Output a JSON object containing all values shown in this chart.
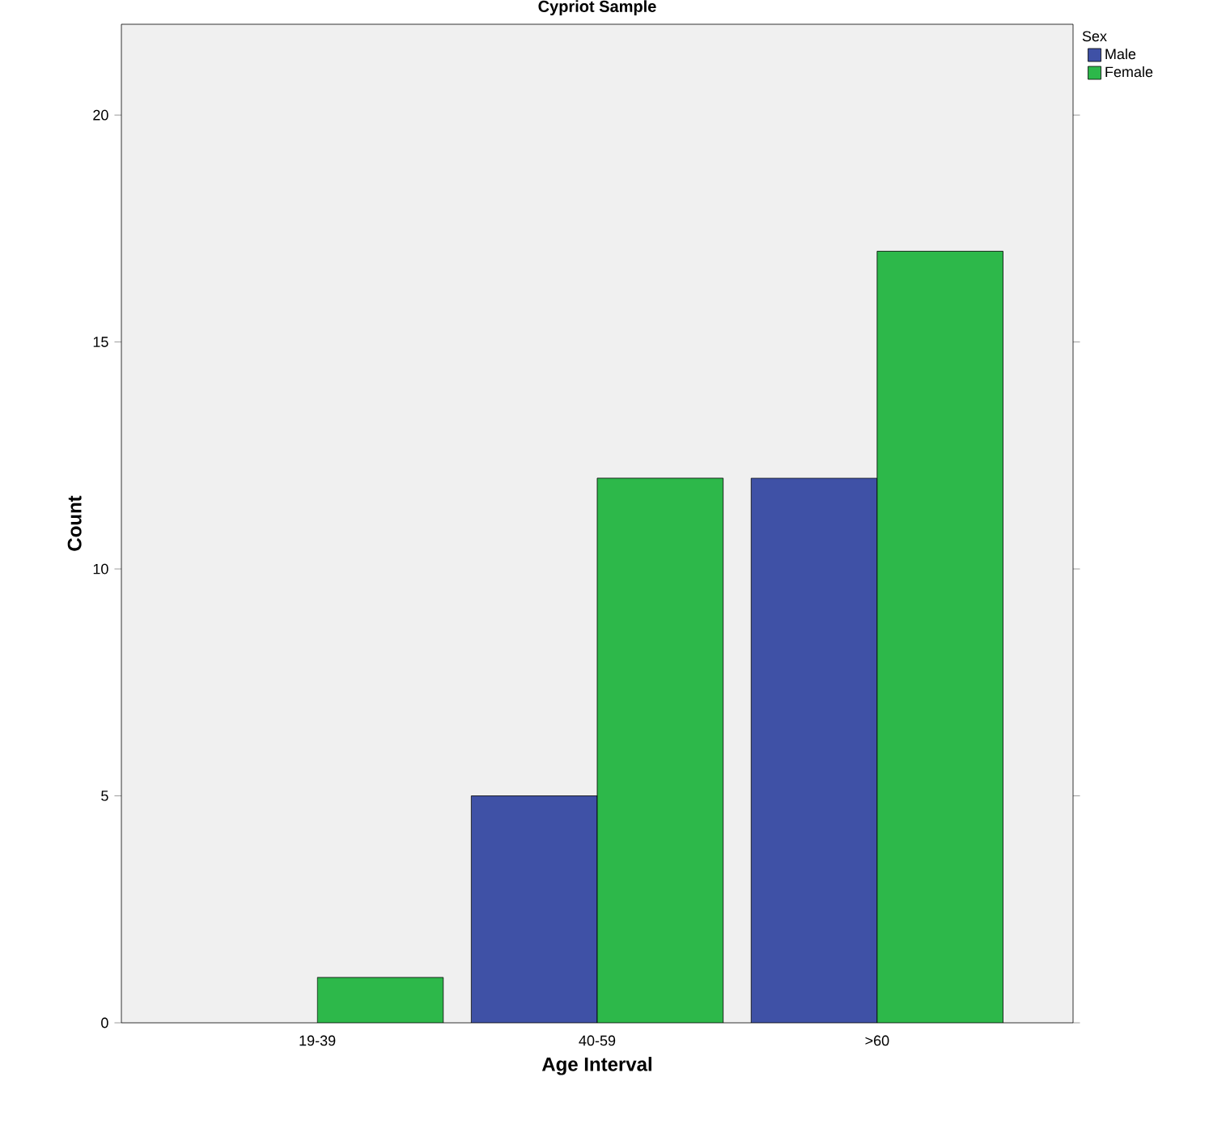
{
  "chart_data": {
    "type": "bar",
    "title": "Cypriot Sample",
    "xlabel": "Age Interval",
    "ylabel": "Count",
    "legend_title": "Sex",
    "categories": [
      "19-39",
      "40-59",
      ">60"
    ],
    "series": [
      {
        "name": "Male",
        "color": "#3f51a6",
        "values": [
          null,
          5,
          12
        ]
      },
      {
        "name": "Female",
        "color": "#2db84a",
        "values": [
          1,
          12,
          17
        ]
      }
    ],
    "ylim": [
      0,
      22
    ],
    "yticks": [
      0,
      5,
      10,
      15,
      20
    ],
    "grid": false,
    "legend": "top right"
  }
}
